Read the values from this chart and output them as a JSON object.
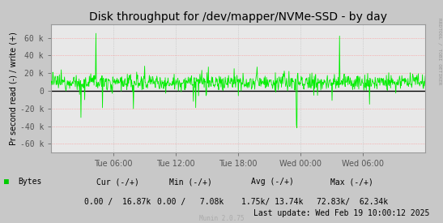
{
  "title": "Disk throughput for /dev/mapper/NVMe-SSD - by day",
  "ylabel": "Pr second read (-) / write (+)",
  "background_color": "#c8c8c8",
  "plot_bg_color": "#e8e8e8",
  "grid_color_h": "#ff8888",
  "grid_color_v": "#cccccc",
  "line_color": "#00ee00",
  "zero_line_color": "#000000",
  "ylim": [
    -70000,
    75000
  ],
  "yticks": [
    -60000,
    -40000,
    -20000,
    0,
    20000,
    40000,
    60000
  ],
  "ytick_labels": [
    "-60 k",
    "-40 k",
    "-20 k",
    "0",
    "20 k",
    "40 k",
    "60 k"
  ],
  "legend_label": "Bytes",
  "legend_color": "#00cc00",
  "cur_label": "Cur (-/+)",
  "cur_val": "0.00 /  16.87k",
  "min_label": "Min (-/+)",
  "min_val": "0.00 /   7.08k",
  "avg_label": "Avg (-/+)",
  "avg_val": "1.75k/ 13.74k",
  "max_label": "Max (-/+)",
  "max_val": "72.83k/  62.34k",
  "last_update": "Last update: Wed Feb 19 10:00:12 2025",
  "munin_label": "Munin 2.0.75",
  "rrdtool_label": "RRDTOOL / TOBI OETIKER",
  "xtick_labels": [
    "Tue 06:00",
    "Tue 12:00",
    "Tue 18:00",
    "Wed 00:00",
    "Wed 06:00"
  ],
  "xtick_positions": [
    0.1667,
    0.3333,
    0.5,
    0.6667,
    0.8333
  ],
  "title_fontsize": 10,
  "axis_fontsize": 7,
  "tick_fontsize": 7,
  "legend_fontsize": 7,
  "seed": 12345,
  "n_points": 800
}
